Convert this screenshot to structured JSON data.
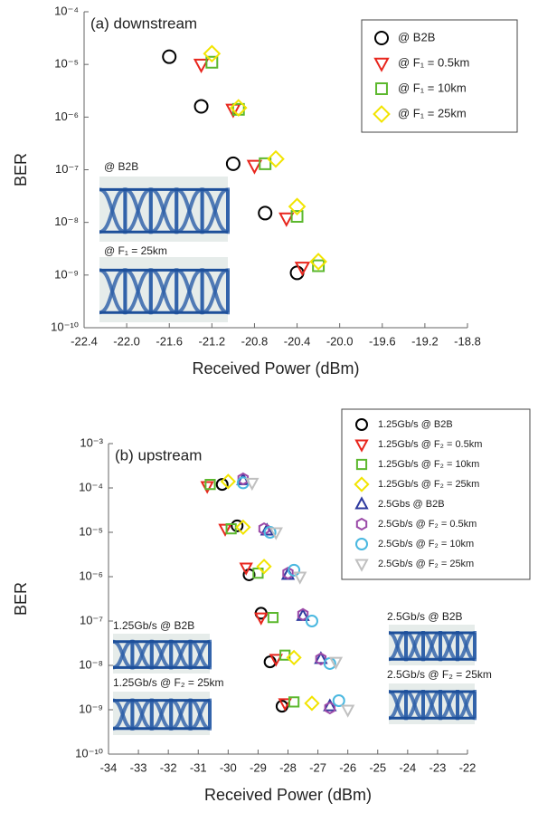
{
  "chart_data": [
    {
      "type": "scatter",
      "title": "(a) downstream",
      "x_label": "Received Power (dBm)",
      "y_label": "BER",
      "log_y": true,
      "grid": false,
      "xlim": [
        -22.4,
        -18.8
      ],
      "xticks": [
        -22.4,
        {
          "value": -22,
          "label": "-22.0"
        },
        -21.6,
        -21.2,
        -20.8,
        -20.4,
        {
          "value": -20,
          "label": "-20.0"
        },
        -19.6,
        -19.2,
        -18.8
      ],
      "ylim": [
        1e-10,
        0.0001
      ],
      "yticks": [
        {
          "value": 1e-10,
          "label": "10⁻¹⁰"
        },
        {
          "value": 1e-09,
          "label": "10⁻⁹"
        },
        {
          "value": 1e-08,
          "label": "10⁻⁸"
        },
        {
          "value": 1e-07,
          "label": "10⁻⁷"
        },
        {
          "value": 1e-06,
          "label": "10⁻⁶"
        },
        {
          "value": 1e-05,
          "label": "10⁻⁵"
        },
        {
          "value": 0.0001,
          "label": "10⁻⁴"
        }
      ],
      "legend": "upper right",
      "annotations": [
        "@ B2B",
        "@ F₁ = 25km"
      ],
      "series": [
        {
          "name": "@ B2B",
          "color": "#000000",
          "marker": "circle",
          "x": [
            -21.6,
            -21.3,
            -21.0,
            -20.7,
            -20.4
          ],
          "values": [
            1.4e-05,
            1.6e-06,
            1.3e-07,
            1.5e-08,
            1.1e-09
          ]
        },
        {
          "name": "@ F₁ = 0.5km",
          "color": "#e8261d",
          "marker": "triangle-down",
          "x": [
            -21.3,
            -21.0,
            -20.8,
            -20.5,
            -20.35
          ],
          "values": [
            1e-05,
            1.4e-06,
            1.2e-07,
            1.2e-08,
            1.4e-09
          ]
        },
        {
          "name": "@ F₁ = 10km",
          "color": "#5cb82e",
          "marker": "square",
          "x": [
            -21.2,
            -20.95,
            -20.7,
            -20.4,
            -20.2
          ],
          "values": [
            1.1e-05,
            1.4e-06,
            1.3e-07,
            1.3e-08,
            1.5e-09
          ]
        },
        {
          "name": "@ F₁ = 25km",
          "color": "#f2e400",
          "marker": "diamond",
          "x": [
            -21.2,
            -20.95,
            -20.6,
            -20.4,
            -20.2
          ],
          "values": [
            1.6e-05,
            1.5e-06,
            1.6e-07,
            2e-08,
            1.8e-09
          ]
        }
      ]
    },
    {
      "type": "scatter",
      "title": "(b) upstream",
      "x_label": "Received Power (dBm)",
      "y_label": "BER",
      "log_y": true,
      "grid": false,
      "xlim": [
        -34,
        -22
      ],
      "xticks": [
        -34,
        -33,
        -32,
        -31,
        -30,
        -29,
        -28,
        -27,
        -26,
        -25,
        -24,
        -23,
        -22
      ],
      "ylim": [
        1e-10,
        0.001
      ],
      "yticks": [
        {
          "value": 1e-10,
          "label": "10⁻¹⁰"
        },
        {
          "value": 1e-09,
          "label": "10⁻⁹"
        },
        {
          "value": 1e-08,
          "label": "10⁻⁸"
        },
        {
          "value": 1e-07,
          "label": "10⁻⁷"
        },
        {
          "value": 1e-06,
          "label": "10⁻⁶"
        },
        {
          "value": 1e-05,
          "label": "10⁻⁵"
        },
        {
          "value": 0.0001,
          "label": "10⁻⁴"
        },
        {
          "value": 0.001,
          "label": "10⁻³"
        }
      ],
      "legend": "upper right",
      "annotations": [
        "1.25Gb/s @ B2B",
        "1.25Gb/s @ F₂ = 25km",
        "2.5Gb/s @ B2B",
        "2.5Gb/s @ F₂ = 25km"
      ],
      "series": [
        {
          "name": "1.25Gb/s @ B2B",
          "color": "#000000",
          "marker": "circle",
          "x": [
            -30.2,
            -29.7,
            -29.3,
            -28.9,
            -28.6,
            -28.2
          ],
          "values": [
            0.00012,
            1.4e-05,
            1.1e-06,
            1.5e-07,
            1.2e-08,
            1.2e-09
          ]
        },
        {
          "name": "1.25Gb/s @ F₂ = 0.5km",
          "color": "#e8261d",
          "marker": "triangle-down",
          "x": [
            -30.7,
            -30.1,
            -29.4,
            -28.9,
            -28.4,
            -28.1
          ],
          "values": [
            0.00011,
            1.2e-05,
            1.6e-06,
            1.2e-07,
            1.4e-08,
            1.4e-09
          ]
        },
        {
          "name": "1.25Gb/s @ F₂ = 10km",
          "color": "#5cb82e",
          "marker": "square",
          "x": [
            -30.6,
            -29.9,
            -29.0,
            -28.5,
            -28.1,
            -27.8
          ],
          "values": [
            0.00012,
            1.2e-05,
            1.2e-06,
            1.2e-07,
            1.7e-08,
            1.5e-09
          ]
        },
        {
          "name": "1.25Gb/s @ F₂ = 25km",
          "color": "#f2e400",
          "marker": "diamond",
          "x": [
            -30.0,
            -29.5,
            -28.8,
            -27.8,
            -27.2
          ],
          "values": [
            0.00014,
            1.3e-05,
            1.7e-06,
            1.5e-08,
            1.4e-09
          ]
        },
        {
          "name": "2.5Gbs @ B2B",
          "color": "#2e3a9e",
          "marker": "triangle",
          "x": [
            -29.5,
            -28.7,
            -28.0,
            -27.5,
            -26.9,
            -26.6
          ],
          "values": [
            0.00015,
            1.1e-05,
            1.1e-06,
            1.3e-07,
            1.4e-08,
            1.2e-09
          ]
        },
        {
          "name": "2.5Gb/s @ F₂ = 0.5km",
          "color": "#9b4aa8",
          "marker": "hexagon",
          "x": [
            -29.5,
            -28.8,
            -28.0,
            -27.5,
            -26.9,
            -26.6
          ],
          "values": [
            0.00016,
            1.2e-05,
            1.2e-06,
            1.4e-07,
            1.4e-08,
            1.1e-09
          ]
        },
        {
          "name": "2.5Gb/s @ F₂ = 10km",
          "color": "#4ab8e0",
          "marker": "circle",
          "x": [
            -29.5,
            -28.6,
            -27.8,
            -27.2,
            -26.6,
            -26.3
          ],
          "values": [
            0.00013,
            1e-05,
            1.4e-06,
            1e-07,
            1.1e-08,
            1.6e-09
          ]
        },
        {
          "name": "2.5Gb/s @ F₂ = 25km",
          "color": "#c0c0c0",
          "marker": "triangle-down",
          "x": [
            -29.2,
            -28.4,
            -27.6,
            -26.4,
            -26.0
          ],
          "values": [
            0.00013,
            1e-05,
            1e-06,
            1.2e-08,
            1e-09
          ]
        }
      ]
    }
  ]
}
